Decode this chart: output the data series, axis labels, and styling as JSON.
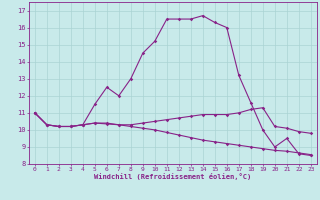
{
  "xlabel": "Windchill (Refroidissement éolien,°C)",
  "xlim": [
    -0.5,
    23.5
  ],
  "ylim": [
    8,
    17.5
  ],
  "yticks": [
    8,
    9,
    10,
    11,
    12,
    13,
    14,
    15,
    16,
    17
  ],
  "xticks": [
    0,
    1,
    2,
    3,
    4,
    5,
    6,
    7,
    8,
    9,
    10,
    11,
    12,
    13,
    14,
    15,
    16,
    17,
    18,
    19,
    20,
    21,
    22,
    23
  ],
  "background_color": "#c8eaea",
  "grid_color": "#aad4d4",
  "line_color": "#882288",
  "series": {
    "line1_x": [
      0,
      1,
      2,
      3,
      4,
      5,
      6,
      7,
      8,
      9,
      10,
      11,
      12,
      13,
      14,
      15,
      16,
      17,
      18,
      19,
      20,
      21,
      22,
      23
    ],
    "line1_y": [
      11.0,
      10.3,
      10.2,
      10.2,
      10.3,
      11.5,
      12.5,
      12.0,
      13.0,
      14.5,
      15.2,
      16.5,
      16.5,
      16.5,
      16.7,
      16.3,
      16.0,
      13.2,
      11.6,
      10.0,
      9.0,
      9.5,
      8.6,
      8.5
    ],
    "line2_x": [
      0,
      1,
      2,
      3,
      4,
      5,
      6,
      7,
      8,
      9,
      10,
      11,
      12,
      13,
      14,
      15,
      16,
      17,
      18,
      19,
      20,
      21,
      22,
      23
    ],
    "line2_y": [
      11.0,
      10.3,
      10.2,
      10.2,
      10.3,
      10.4,
      10.4,
      10.3,
      10.3,
      10.4,
      10.5,
      10.6,
      10.7,
      10.8,
      10.9,
      10.9,
      10.9,
      11.0,
      11.2,
      11.3,
      10.2,
      10.1,
      9.9,
      9.8
    ],
    "line3_x": [
      0,
      1,
      2,
      3,
      4,
      5,
      6,
      7,
      8,
      9,
      10,
      11,
      12,
      13,
      14,
      15,
      16,
      17,
      18,
      19,
      20,
      21,
      22,
      23
    ],
    "line3_y": [
      11.0,
      10.3,
      10.2,
      10.2,
      10.3,
      10.4,
      10.35,
      10.3,
      10.2,
      10.1,
      10.0,
      9.85,
      9.7,
      9.55,
      9.4,
      9.3,
      9.2,
      9.1,
      9.0,
      8.9,
      8.8,
      8.75,
      8.65,
      8.55
    ]
  }
}
